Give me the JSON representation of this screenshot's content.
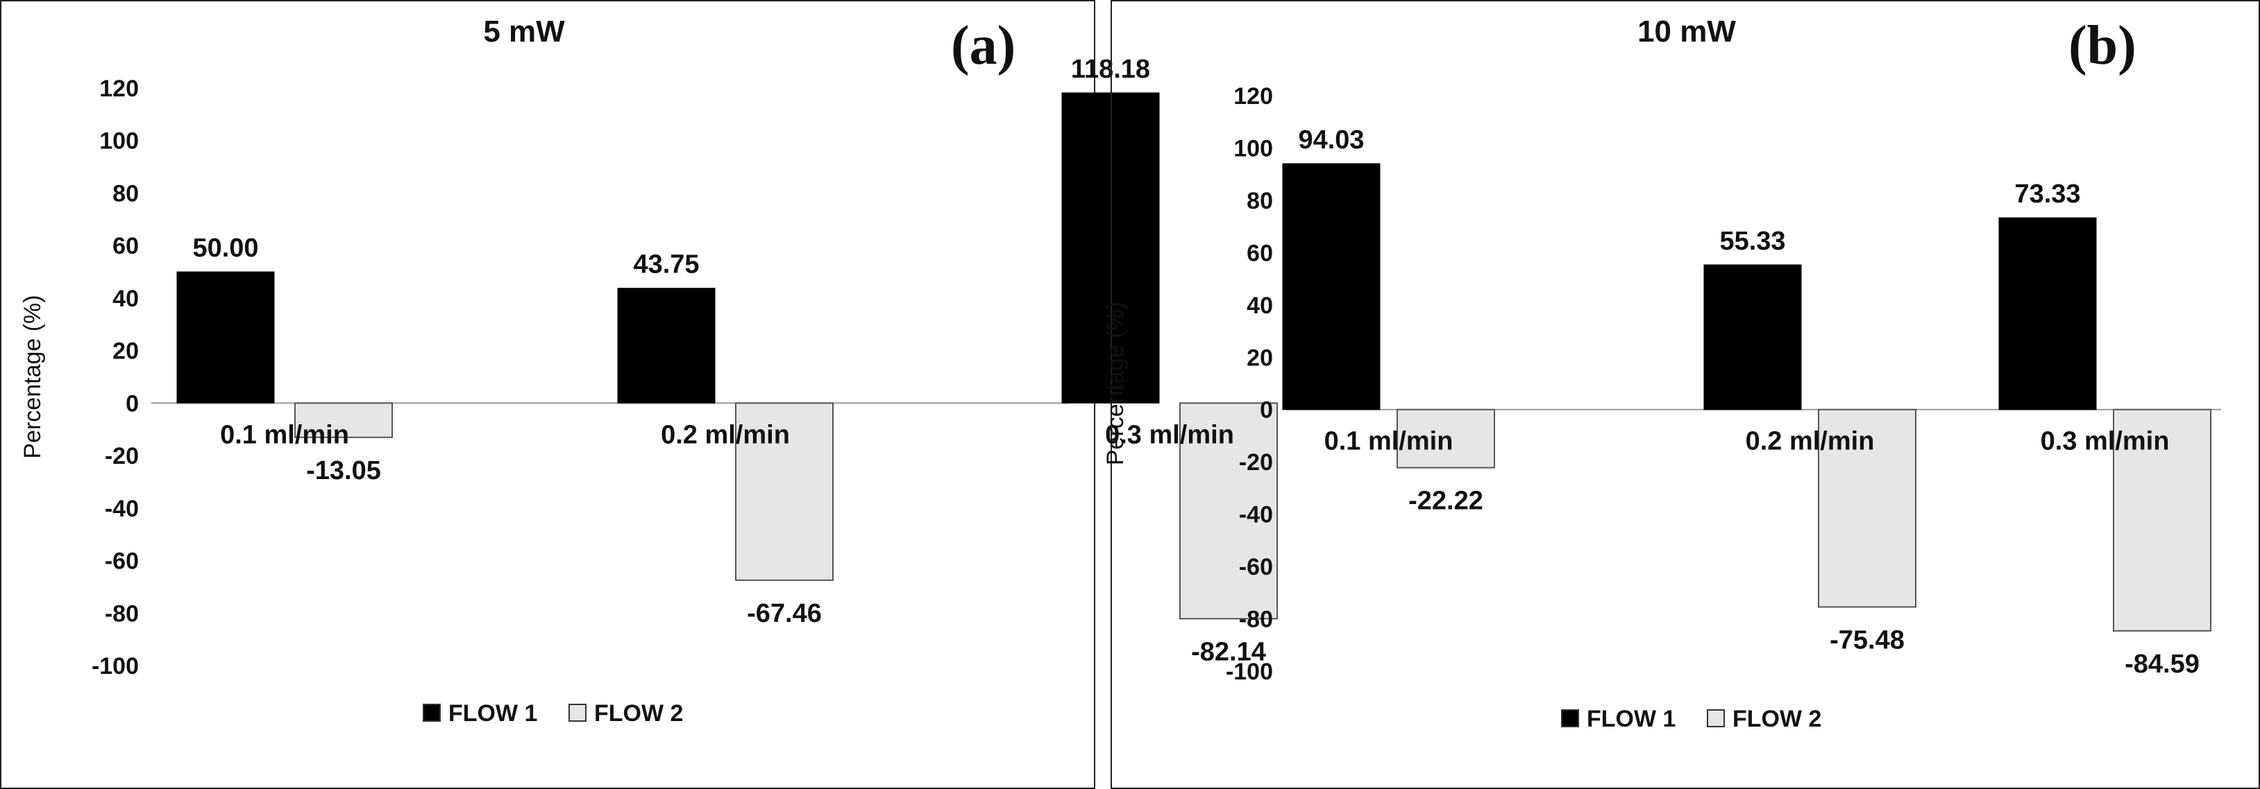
{
  "chart_data": [
    {
      "type": "bar",
      "title": "5 mW",
      "panel": "(a)",
      "ylabel": "Percentage (%)",
      "ylim": [
        -100,
        120
      ],
      "yticks": [
        120,
        100,
        80,
        60,
        40,
        20,
        0,
        -20,
        -40,
        -60,
        -80,
        -100
      ],
      "categories": [
        "0.1 ml/min",
        "0.2 ml/min",
        "0.3 ml/min"
      ],
      "series": [
        {
          "name": "FLOW 1",
          "values": [
            50.0,
            43.75,
            118.18
          ],
          "labels": [
            "50.00",
            "43.75",
            "118.18"
          ],
          "color": "#000000"
        },
        {
          "name": "FLOW 2",
          "values": [
            -13.05,
            -67.46,
            -82.14
          ],
          "labels": [
            "-13.05",
            "-67.46",
            "-82.14"
          ],
          "color": "#e6e6e6"
        }
      ],
      "legend": "bottom",
      "grid": false
    },
    {
      "type": "bar",
      "title": "10 mW",
      "panel": "(b)",
      "ylabel": "Percentage (%)",
      "ylim": [
        -100,
        120
      ],
      "yticks": [
        120,
        100,
        80,
        60,
        40,
        20,
        0,
        -20,
        -40,
        -60,
        -80,
        -100
      ],
      "categories": [
        "0.1 ml/min",
        "0.2 ml/min",
        "0.3 ml/min"
      ],
      "series": [
        {
          "name": "FLOW 1",
          "values": [
            94.03,
            55.33,
            73.33
          ],
          "labels": [
            "94.03",
            "55.33",
            "73.33"
          ],
          "color": "#000000"
        },
        {
          "name": "FLOW 2",
          "values": [
            -22.22,
            -75.48,
            -84.59
          ],
          "labels": [
            "-22.22",
            "-75.48",
            "-84.59"
          ],
          "color": "#e6e6e6"
        }
      ],
      "legend": "bottom",
      "grid": false
    }
  ]
}
